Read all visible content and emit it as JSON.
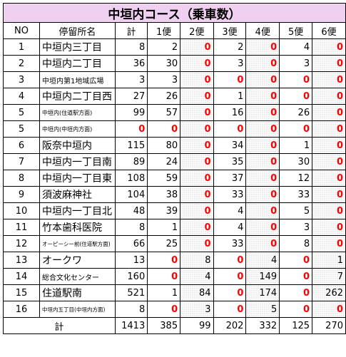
{
  "title": "中垣内コース（乗車数）",
  "headers": [
    "NO",
    "停留所名",
    "計",
    "1便",
    "2便",
    "3便",
    "4便",
    "5便",
    "6便"
  ],
  "rows": [
    {
      "no": "1",
      "stop": "中垣内三丁目",
      "total": "8",
      "trips": [
        "2",
        "0",
        "2",
        "0",
        "4",
        "0"
      ]
    },
    {
      "no": "2",
      "stop": "中垣内二丁目",
      "total": "36",
      "trips": [
        "30",
        "0",
        "3",
        "0",
        "3",
        "0"
      ]
    },
    {
      "no": "3",
      "stop": "中垣内第1地域広場",
      "total": "3",
      "trips": [
        "3",
        "0",
        "0",
        "0",
        "0",
        "0"
      ]
    },
    {
      "no": "4",
      "stop": "中垣内二丁目西",
      "total": "27",
      "trips": [
        "26",
        "0",
        "1",
        "0",
        "0",
        "0"
      ]
    },
    {
      "no": "5",
      "stop": "中垣内(住道駅方面)",
      "total": "99",
      "trips": [
        "57",
        "0",
        "16",
        "0",
        "26",
        "0"
      ]
    },
    {
      "no": "5",
      "stop": "中垣内(中垣内方面)",
      "total": "0",
      "trips": [
        "0",
        "0",
        "0",
        "0",
        "0",
        "0"
      ]
    },
    {
      "no": "6",
      "stop": "阪奈中垣内",
      "total": "115",
      "trips": [
        "80",
        "0",
        "34",
        "0",
        "1",
        "0"
      ]
    },
    {
      "no": "7",
      "stop": "中垣内一丁目南",
      "total": "89",
      "trips": [
        "24",
        "0",
        "35",
        "0",
        "30",
        "0"
      ]
    },
    {
      "no": "8",
      "stop": "中垣内一丁目東",
      "total": "108",
      "trips": [
        "59",
        "0",
        "37",
        "0",
        "12",
        "0"
      ]
    },
    {
      "no": "9",
      "stop": "須波麻神社",
      "total": "104",
      "trips": [
        "38",
        "0",
        "33",
        "0",
        "33",
        "0"
      ]
    },
    {
      "no": "10",
      "stop": "中垣内一丁目北",
      "total": "48",
      "trips": [
        "39",
        "0",
        "4",
        "0",
        "5",
        "0"
      ]
    },
    {
      "no": "11",
      "stop": "竹本歯科医院",
      "total": "8",
      "trips": [
        "1",
        "0",
        "4",
        "0",
        "3",
        "0"
      ]
    },
    {
      "no": "12",
      "stop": "オーピーシー前(住道駅方面)",
      "total": "66",
      "trips": [
        "25",
        "0",
        "33",
        "0",
        "8",
        "0"
      ]
    },
    {
      "no": "13",
      "stop": "オークワ",
      "total": "13",
      "trips": [
        "0",
        "8",
        "0",
        "4",
        "0",
        "1"
      ]
    },
    {
      "no": "14",
      "stop": "総合文化センター",
      "total": "160",
      "trips": [
        "0",
        "4",
        "0",
        "149",
        "0",
        "7"
      ]
    },
    {
      "no": "15",
      "stop": "住道駅南",
      "total": "521",
      "trips": [
        "1",
        "84",
        "0",
        "174",
        "0",
        "262"
      ]
    },
    {
      "no": "16",
      "stop": "中垣内五丁目(中垣内方面)",
      "total": "8",
      "trips": [
        "0",
        "3",
        "0",
        "5",
        "0",
        "0"
      ]
    }
  ],
  "totals": {
    "label": "計",
    "total": "1413",
    "trips": [
      "385",
      "99",
      "202",
      "332",
      "125",
      "270"
    ]
  }
}
